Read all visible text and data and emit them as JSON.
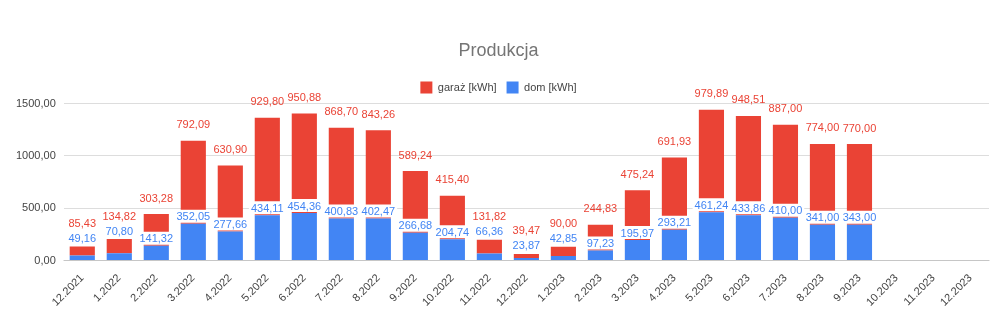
{
  "chart_data": {
    "type": "bar",
    "title": "Produkcja",
    "stacked": true,
    "legend": "top",
    "grid": "y",
    "categories": [
      "12.2021",
      "1.2022",
      "2.2022",
      "3.2022",
      "4.2022",
      "5.2022",
      "6.2022",
      "7.2022",
      "8.2022",
      "9.2022",
      "10.2022",
      "11.2022",
      "12.2022",
      "1.2023",
      "2.2023",
      "3.2023",
      "4.2023",
      "5.2023",
      "6.2023",
      "7.2023",
      "8.2023",
      "9.2023",
      "10.2023",
      "11.2023",
      "12.2023"
    ],
    "ylim": [
      0,
      1500
    ],
    "yticks": [
      {
        "value": 0,
        "label": "0,00"
      },
      {
        "value": 500,
        "label": "500,00"
      },
      {
        "value": 1000,
        "label": "1000,00"
      },
      {
        "value": 1500,
        "label": "1500,00"
      }
    ],
    "series": [
      {
        "name": "dom [kWh]",
        "color": "#4285f4",
        "values": [
          49.16,
          70.8,
          141.32,
          352.05,
          277.66,
          434.11,
          454.36,
          400.83,
          402.47,
          266.68,
          204.74,
          66.36,
          23.87,
          42.85,
          97.23,
          195.97,
          293.21,
          461.24,
          433.86,
          410.0,
          341.0,
          343.0,
          null,
          null,
          null
        ],
        "value_labels": [
          "49,16",
          "70,80",
          "141,32",
          "352,05",
          "277,66",
          "434,11",
          "454,36",
          "400,83",
          "402,47",
          "266,68",
          "204,74",
          "66,36",
          "23,87",
          "42,85",
          "97,23",
          "195,97",
          "293,21",
          "461,24",
          "433,86",
          "410,00",
          "341,00",
          "343,00",
          null,
          null,
          null
        ]
      },
      {
        "name": "garaż [kWh]",
        "color": "#ea4335",
        "values": [
          85.43,
          134.82,
          303.28,
          792.09,
          630.9,
          929.8,
          950.88,
          868.7,
          843.26,
          589.24,
          415.4,
          131.82,
          39.47,
          90.0,
          244.83,
          475.24,
          691.93,
          979.89,
          948.51,
          887.0,
          774.0,
          770.0,
          null,
          null,
          null
        ],
        "value_labels": [
          "85,43",
          "134,82",
          "303,28",
          "792,09",
          "630,90",
          "929,80",
          "950,88",
          "868,70",
          "843,26",
          "589,24",
          "415,40",
          "131,82",
          "39,47",
          "90,00",
          "244,83",
          "475,24",
          "691,93",
          "979,89",
          "948,51",
          "887,00",
          "774,00",
          "770,00",
          null,
          null,
          null
        ]
      }
    ]
  }
}
